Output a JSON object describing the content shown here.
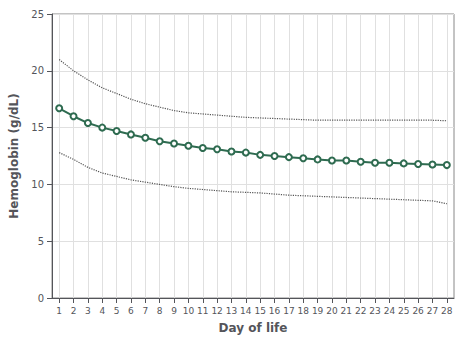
{
  "chart_data": {
    "type": "line",
    "x": [
      1,
      2,
      3,
      4,
      5,
      6,
      7,
      8,
      9,
      10,
      11,
      12,
      13,
      14,
      15,
      16,
      17,
      18,
      19,
      20,
      21,
      22,
      23,
      24,
      25,
      26,
      27,
      28
    ],
    "series": [
      {
        "color": "#555555",
        "line_style": "dotted",
        "values": [
          21.0,
          20.0,
          19.2,
          18.5,
          18.0,
          17.5,
          17.1,
          16.8,
          16.5,
          16.3,
          16.2,
          16.1,
          16.0,
          15.9,
          15.85,
          15.8,
          15.75,
          15.7,
          15.65,
          15.65,
          15.65,
          15.65,
          15.65,
          15.65,
          15.65,
          15.65,
          15.65,
          15.6
        ]
      },
      {
        "color": "#555555",
        "line_style": "dotted",
        "values": [
          12.8,
          12.2,
          11.5,
          11.0,
          10.7,
          10.4,
          10.2,
          10.0,
          9.8,
          9.65,
          9.55,
          9.45,
          9.35,
          9.3,
          9.25,
          9.15,
          9.05,
          9.0,
          8.95,
          8.9,
          8.85,
          8.8,
          8.75,
          8.7,
          8.65,
          8.6,
          8.55,
          8.3
        ]
      },
      {
        "color": "#2e6b50",
        "line_style": "solid",
        "marker": "circle",
        "values": [
          16.7,
          16.0,
          15.4,
          15.0,
          14.7,
          14.4,
          14.1,
          13.8,
          13.6,
          13.4,
          13.2,
          13.1,
          12.9,
          12.8,
          12.6,
          12.5,
          12.4,
          12.3,
          12.2,
          12.1,
          12.1,
          12.0,
          11.9,
          11.9,
          11.85,
          11.8,
          11.75,
          11.7
        ]
      }
    ],
    "xlabel": "Day of life",
    "ylabel": "Hemoglobin (g/dL)",
    "xlim": [
      0.5,
      28.5
    ],
    "xticks": [
      1,
      2,
      3,
      4,
      5,
      6,
      7,
      8,
      9,
      10,
      11,
      12,
      13,
      14,
      15,
      16,
      17,
      18,
      19,
      20,
      21,
      22,
      23,
      24,
      25,
      26,
      27,
      28
    ],
    "ylim": [
      0,
      25
    ],
    "yticks": [
      0,
      5,
      10,
      15,
      20,
      25
    ],
    "grid": true
  }
}
